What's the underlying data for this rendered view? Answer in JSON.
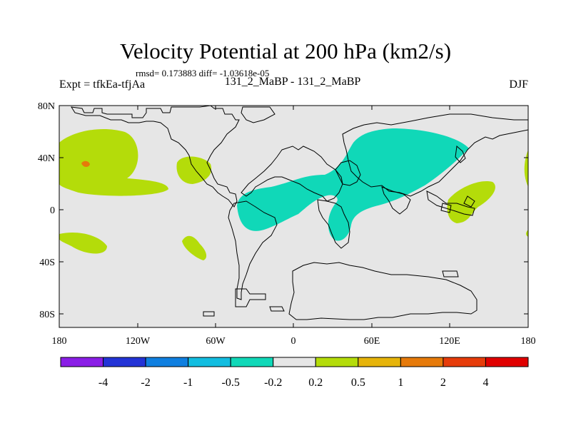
{
  "title": "Velocity Potential at 200 hPa (km2/s)",
  "stats": "rmsd= 0.173883 diff= -1.03618e-05",
  "experiment": "Expt = tfkEa-tfjAa",
  "runs": "131_2_MaBP - 131_2_MaBP",
  "season": "DJF",
  "axes": {
    "lat_ticks": [
      "80N",
      "40N",
      "0",
      "40S",
      "80S"
    ],
    "lon_ticks": [
      "180",
      "120W",
      "60W",
      "0",
      "60E",
      "120E",
      "180"
    ]
  },
  "colorbar": {
    "labels": [
      "-4",
      "-2",
      "-1",
      "-0.5",
      "-0.2",
      "0.2",
      "0.5",
      "1",
      "2",
      "4"
    ],
    "colors": [
      "#8a1ee6",
      "#2333d6",
      "#0f7fe0",
      "#12bde0",
      "#10d8b8",
      "#e6e6e6",
      "#b4dc0a",
      "#e6b40a",
      "#e67a0a",
      "#e63c0a",
      "#e00000"
    ]
  },
  "colors": {
    "background": "#e6e6e6",
    "positive_low": "#b4dc0a",
    "negative_low": "#10d8b8",
    "positive_mid": "#e67a0a",
    "coastline": "#000000"
  }
}
